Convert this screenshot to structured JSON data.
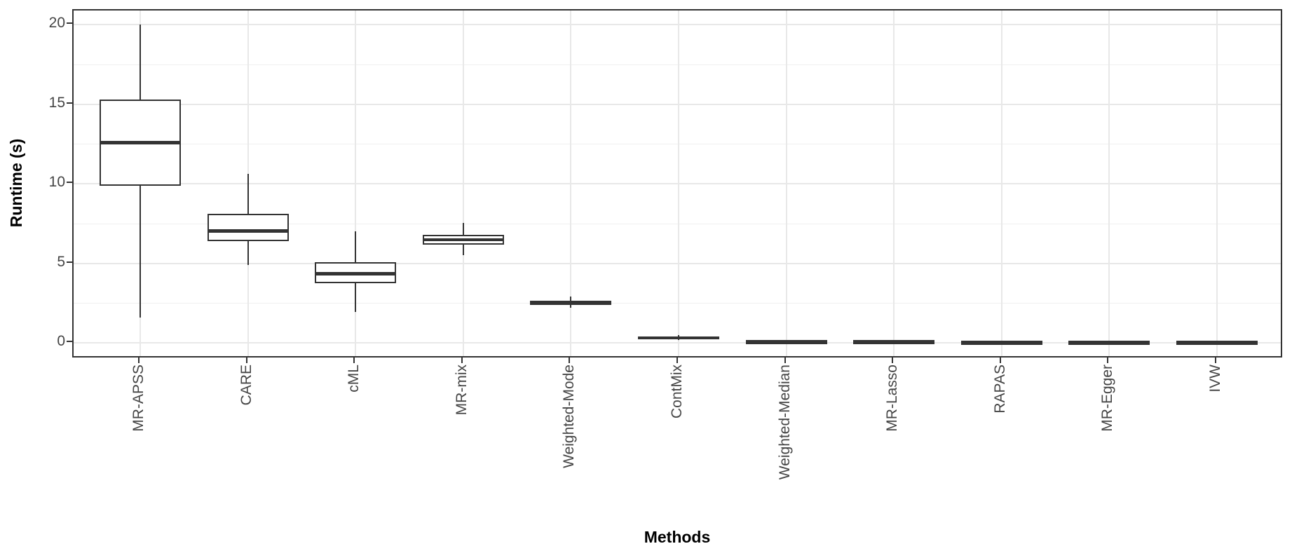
{
  "figure": {
    "y_axis_title": "Runtime (s)",
    "x_axis_title": "Methods"
  },
  "colors": {
    "box_stroke": "#333333",
    "panel_border": "#333333",
    "grid_major": "#e8e8e8",
    "grid_minor": "#f0f0f0",
    "tick_label": "#454545",
    "axis_title": "#000000",
    "background": "#ffffff"
  },
  "chart_data": {
    "type": "boxplot",
    "title": "",
    "xlabel": "Methods",
    "ylabel": "Runtime (s)",
    "grid": "on",
    "legend": "none",
    "categories": [
      "MR-APSS",
      "CARE",
      "cML",
      "MR-mix",
      "Weighted-Mode",
      "ContMix",
      "Weighted-Median",
      "MR-Lasso",
      "RAPAS",
      "MR-Egger",
      "IVW"
    ],
    "y_ticks": [
      0,
      5,
      10,
      15,
      20
    ],
    "y_minor_grid": [
      2.5,
      7.5,
      12.5,
      17.5
    ],
    "ylim": [
      -1.0,
      20.9
    ],
    "series": [
      {
        "name": "MR-APSS",
        "min": 1.6,
        "q1": 9.9,
        "median": 12.6,
        "q3": 15.3,
        "max": 20.0
      },
      {
        "name": "CARE",
        "min": 4.9,
        "q1": 6.4,
        "median": 7.05,
        "q3": 8.1,
        "max": 10.65
      },
      {
        "name": "cML",
        "min": 1.95,
        "q1": 3.75,
        "median": 4.35,
        "q3": 5.1,
        "max": 7.0
      },
      {
        "name": "MR-mix",
        "min": 5.5,
        "q1": 6.2,
        "median": 6.5,
        "q3": 6.8,
        "max": 7.55
      },
      {
        "name": "Weighted-Mode",
        "min": 2.2,
        "q1": 2.4,
        "median": 2.5,
        "q3": 2.65,
        "max": 2.9
      },
      {
        "name": "ContMix",
        "min": 0.2,
        "q1": 0.25,
        "median": 0.32,
        "q3": 0.42,
        "max": 0.5
      },
      {
        "name": "Weighted-Median",
        "min": 0.02,
        "q1": 0.04,
        "median": 0.07,
        "q3": 0.1,
        "max": 0.13
      },
      {
        "name": "MR-Lasso",
        "min": 0.03,
        "q1": 0.05,
        "median": 0.08,
        "q3": 0.11,
        "max": 0.14
      },
      {
        "name": "RAPAS",
        "min": 0.01,
        "q1": 0.02,
        "median": 0.04,
        "q3": 0.06,
        "max": 0.08
      },
      {
        "name": "MR-Egger",
        "min": 0.01,
        "q1": 0.02,
        "median": 0.04,
        "q3": 0.06,
        "max": 0.08
      },
      {
        "name": "IVW",
        "min": 0.0,
        "q1": 0.01,
        "median": 0.03,
        "q3": 0.05,
        "max": 0.07
      }
    ]
  }
}
